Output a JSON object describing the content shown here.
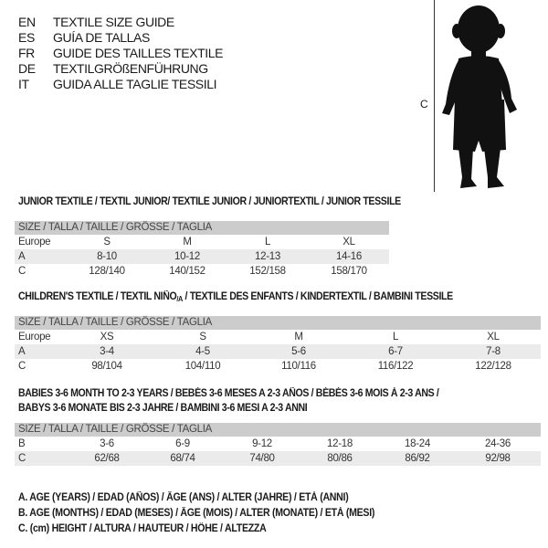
{
  "languages": [
    {
      "code": "EN",
      "title": "TEXTILE SIZE GUIDE"
    },
    {
      "code": "ES",
      "title": "GUÍA DE TALLAS"
    },
    {
      "code": "FR",
      "title": "GUIDE DES TAILLES TEXTILE"
    },
    {
      "code": "DE",
      "title": "TEXTILGRÖßENFÜHRUNG"
    },
    {
      "code": "IT",
      "title": "GUIDA ALLE TAGLIE TESSILI"
    }
  ],
  "figure": {
    "label": "C",
    "icon": "child-silhouette"
  },
  "junior": {
    "title": "JUNIOR TEXTILE / TEXTIL JUNIOR/ TEXTILE JUNIOR / JUNIORTEXTIL / JUNIOR TESSILE",
    "header": "SIZE / TALLA / TAILLE / GRÖSSE / TAGLIA",
    "rows": [
      {
        "label": "Europe",
        "values": [
          "S",
          "M",
          "L",
          "XL"
        ]
      },
      {
        "label": "A",
        "values": [
          "8-10",
          "10-12",
          "12-13",
          "14-16"
        ]
      },
      {
        "label": "C",
        "values": [
          "128/140",
          "140/152",
          "152/158",
          "158/170"
        ]
      }
    ]
  },
  "children": {
    "title": "CHILDREN'S TEXTILE / TEXTIL NIÑO/A / TEXTILE DES ENFANTS / KINDERTEXTIL / BAMBINI TESSILE",
    "header": "SIZE / TALLA / TAILLE / GRÖSSE / TAGLIA",
    "rows": [
      {
        "label": "Europe",
        "values": [
          "XS",
          "S",
          "M",
          "L",
          "XL"
        ]
      },
      {
        "label": "A",
        "values": [
          "3-4",
          "4-5",
          "5-6",
          "6-7",
          "7-8"
        ]
      },
      {
        "label": "C",
        "values": [
          "98/104",
          "104/110",
          "110/116",
          "116/122",
          "122/128"
        ]
      }
    ]
  },
  "babies": {
    "title1": "BABIES 3-6 MONTH TO 2-3 YEARS / BEBÉS 3-6 MESES A 2-3 AÑOS / BÉBÉS 3-6 MOIS À 2-3 ANS /",
    "title2": "BABYS 3-6 MONATE BIS 2-3 JAHRE / BAMBINI 3-6 MESI A 2-3 ANNI",
    "header": "SIZE / TALLA / TAILLE / GRÖSSE / TAGLIA",
    "rows": [
      {
        "label": "B",
        "values": [
          "3-6",
          "6-9",
          "9-12",
          "12-18",
          "18-24",
          "24-36"
        ]
      },
      {
        "label": "C",
        "values": [
          "62/68",
          "68/74",
          "74/80",
          "80/86",
          "86/92",
          "92/98"
        ]
      }
    ]
  },
  "legend": [
    "A. AGE (YEARS) / EDAD (AÑOS) / ÂGE (ANS) / ALTER (JAHRE) / ETÀ (ANNI)",
    "B. AGE (MONTHS) / EDAD (MESES) / ÂGE (MOIS) / ALTER (MONATE) / ETÀ (MESI)",
    "C. (cm) HEIGHT / ALTURA / HAUTEUR / HÖHE / ALTEZZA"
  ]
}
